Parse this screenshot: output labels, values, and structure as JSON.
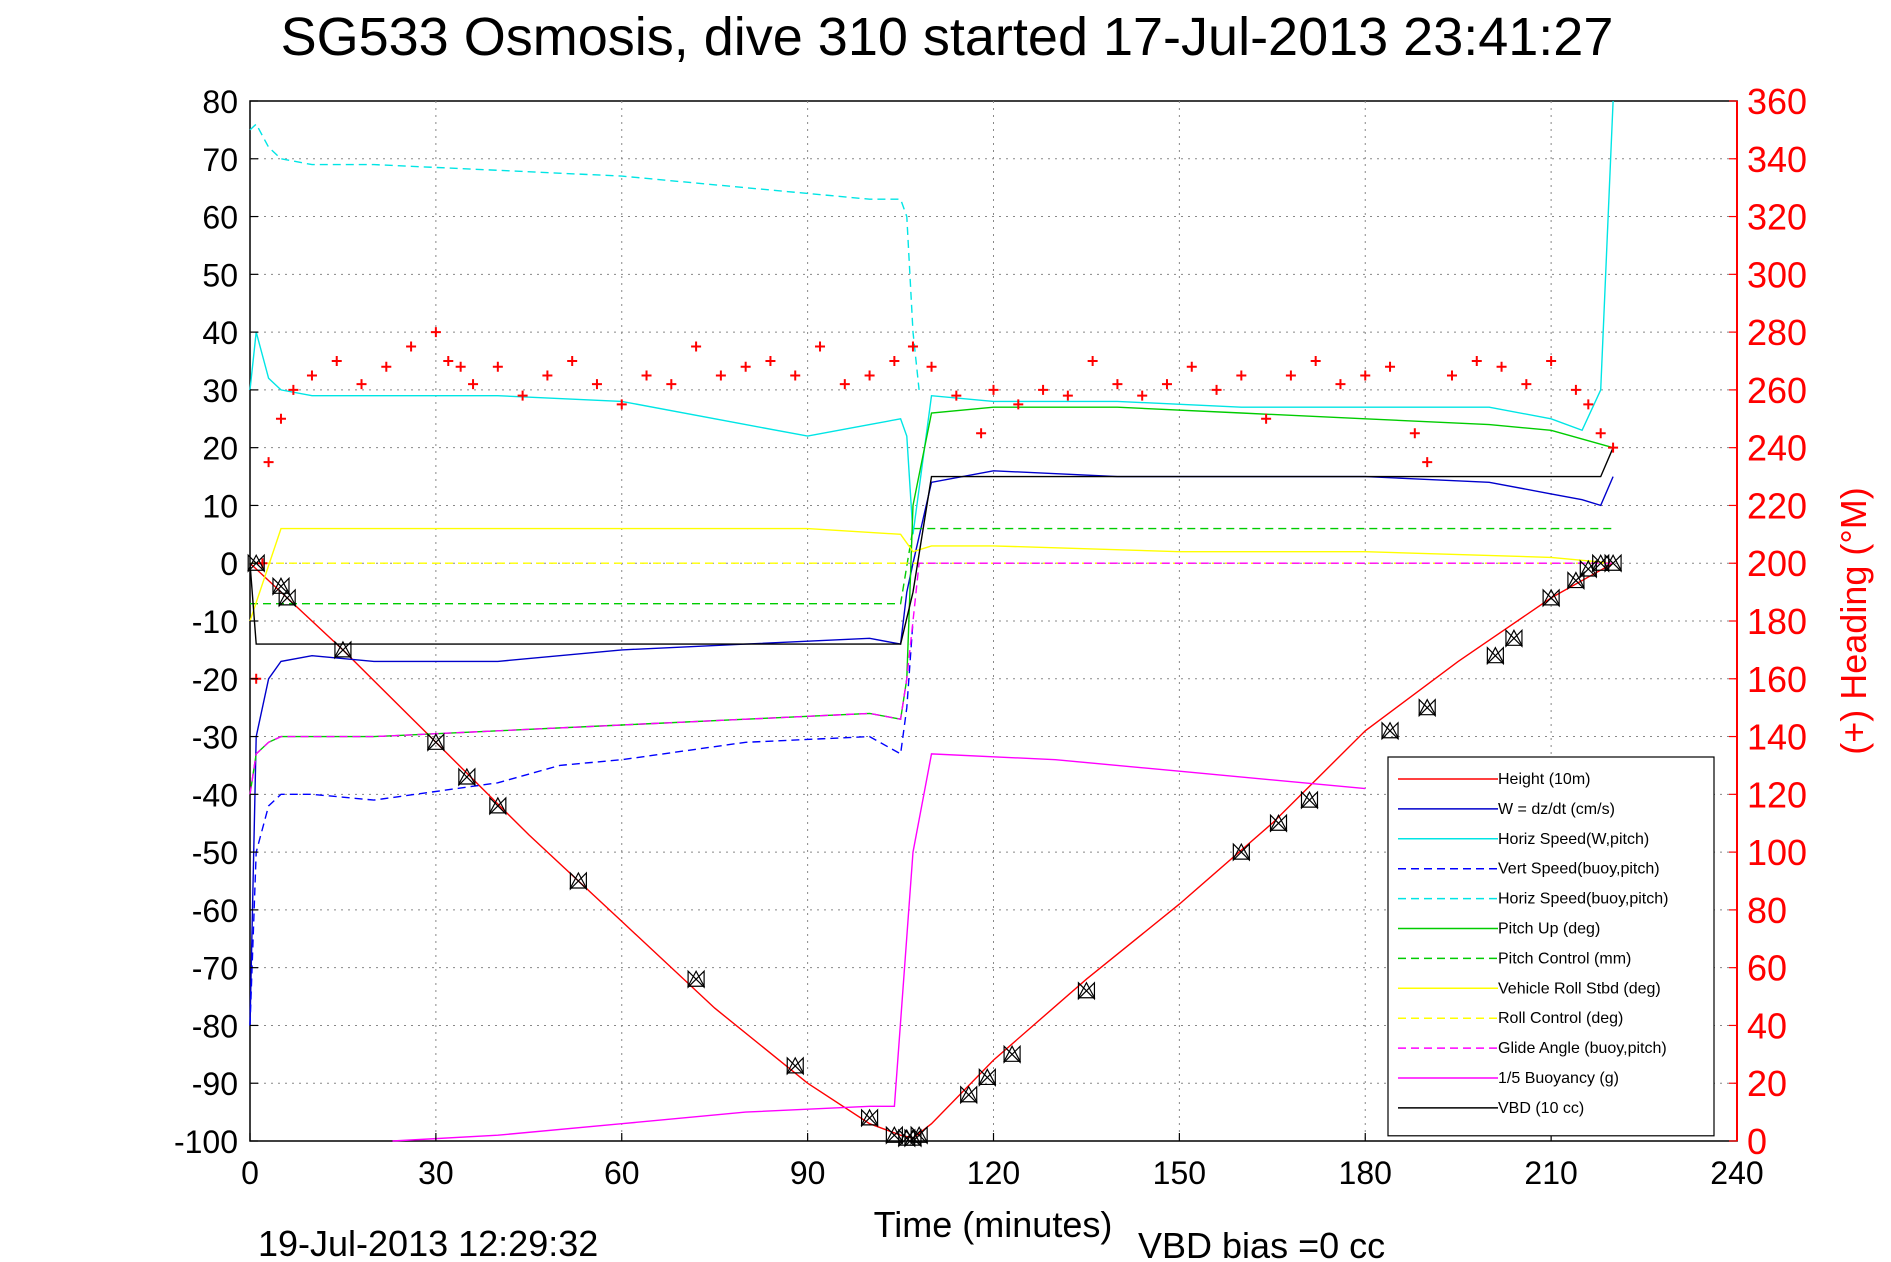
{
  "chart_data": {
    "type": "line",
    "title": "SG533 Osmosis, dive 310 started 17-Jul-2013 23:41:27",
    "xlabel": "Time (minutes)",
    "ylabel_right": "(+) Heading (°M)",
    "footer_left": "19-Jul-2013 12:29:32",
    "footer_right": "VBD bias =0 cc",
    "xlim": [
      0,
      240
    ],
    "ylim": [
      -100,
      80
    ],
    "ylim_right": [
      0,
      360
    ],
    "x_ticks": [
      "0",
      "30",
      "60",
      "90",
      "120",
      "150",
      "180",
      "210",
      "240"
    ],
    "y_ticks": [
      "80",
      "70",
      "60",
      "50",
      "40",
      "30",
      "20",
      "10",
      "0",
      "-10",
      "-20",
      "-30",
      "-40",
      "-50",
      "-60",
      "-70",
      "-80",
      "-90",
      "-100"
    ],
    "y_ticks_right": [
      "360",
      "340",
      "320",
      "300",
      "280",
      "260",
      "240",
      "220",
      "200",
      "180",
      "160",
      "140",
      "120",
      "100",
      "80",
      "60",
      "40",
      "20",
      "0"
    ],
    "grid": true,
    "legend_position": "bottom-right",
    "colors": {
      "red": "#ff0000",
      "blue": "#0000cc",
      "cyan": "#00e5e5",
      "green": "#00cc00",
      "yellow": "#ffff00",
      "magenta": "#ff00ff",
      "black": "#000000"
    },
    "series": [
      {
        "name": "Height (10m)",
        "color": "#ff0000",
        "dash": "solid",
        "x": [
          0,
          15,
          30,
          45,
          60,
          75,
          90,
          100,
          105,
          107,
          110,
          120,
          135,
          150,
          165,
          180,
          195,
          210,
          220
        ],
        "y": [
          0,
          -15,
          -31,
          -47,
          -62,
          -77,
          -90,
          -97,
          -99,
          -99.5,
          -97,
          -86,
          -72,
          -59,
          -45,
          -29,
          -17,
          -6,
          0
        ]
      },
      {
        "name": "W = dz/dt (cm/s)",
        "color": "#0000cc",
        "dash": "solid",
        "x": [
          0,
          1,
          3,
          5,
          10,
          20,
          40,
          60,
          80,
          100,
          105,
          106,
          107,
          110,
          120,
          140,
          160,
          180,
          200,
          210,
          215,
          218,
          220
        ],
        "y": [
          -80,
          -30,
          -20,
          -17,
          -16,
          -17,
          -17,
          -15,
          -14,
          -13,
          -14,
          -5,
          0,
          14,
          16,
          15,
          15,
          15,
          14,
          12,
          11,
          10,
          15
        ]
      },
      {
        "name": "Horiz Speed(W,pitch)",
        "color": "#00e5e5",
        "dash": "solid",
        "x": [
          0,
          1,
          3,
          5,
          10,
          20,
          40,
          60,
          80,
          90,
          100,
          105,
          106,
          107,
          110,
          120,
          140,
          160,
          180,
          200,
          210,
          215,
          218,
          220
        ],
        "y": [
          30,
          40,
          32,
          30,
          29,
          29,
          29,
          28,
          24,
          22,
          24,
          25,
          22,
          5,
          29,
          28,
          28,
          27,
          27,
          27,
          25,
          23,
          30,
          80
        ]
      },
      {
        "name": "Vert Speed(buoy,pitch)",
        "color": "#0000ff",
        "dash": "dashed",
        "x": [
          0,
          1,
          3,
          5,
          10,
          20,
          40,
          50,
          60,
          80,
          100,
          105,
          106,
          107
        ],
        "y": [
          -80,
          -50,
          -42,
          -40,
          -40,
          -41,
          -38,
          -35,
          -34,
          -31,
          -30,
          -33,
          -25,
          -10
        ]
      },
      {
        "name": "Horiz Speed(buoy,pitch)",
        "color": "#00e5e5",
        "dash": "dashed",
        "x": [
          0,
          1,
          3,
          5,
          10,
          20,
          40,
          60,
          80,
          100,
          105,
          106,
          107,
          108
        ],
        "y": [
          75,
          76,
          72,
          70,
          69,
          69,
          68,
          67,
          65,
          63,
          63,
          60,
          40,
          30
        ]
      },
      {
        "name": "Pitch Up (deg)",
        "color": "#00cc00",
        "dash": "solid",
        "x": [
          0,
          1,
          3,
          5,
          10,
          20,
          40,
          60,
          80,
          100,
          105,
          106,
          107,
          110,
          120,
          140,
          160,
          180,
          200,
          210,
          220
        ],
        "y": [
          -40,
          -33,
          -31,
          -30,
          -30,
          -30,
          -29,
          -28,
          -27,
          -26,
          -27,
          -20,
          10,
          26,
          27,
          27,
          26,
          25,
          24,
          23,
          20
        ]
      },
      {
        "name": "Pitch Control (mm)",
        "color": "#00cc00",
        "dash": "dashed",
        "x": [
          0,
          5,
          30,
          60,
          90,
          105,
          107,
          110,
          120,
          150,
          180,
          210,
          220
        ],
        "y": [
          -7,
          -7,
          -7,
          -7,
          -7,
          -7,
          6,
          6,
          6,
          6,
          6,
          6,
          6
        ]
      },
      {
        "name": "Vehicle Roll Stbd (deg)",
        "color": "#ffff00",
        "dash": "solid",
        "x": [
          0,
          5,
          10,
          30,
          60,
          90,
          105,
          107,
          110,
          120,
          150,
          180,
          210,
          220
        ],
        "y": [
          -10,
          6,
          6,
          6,
          6,
          6,
          5,
          2,
          3,
          3,
          2,
          2,
          1,
          0
        ]
      },
      {
        "name": "Roll Control (deg)",
        "color": "#ffff00",
        "dash": "dashed",
        "x": [
          0,
          5,
          30,
          60,
          90,
          105,
          107,
          110,
          150,
          180,
          210,
          220
        ],
        "y": [
          0,
          0,
          0,
          0,
          0,
          0,
          0,
          0,
          0,
          0,
          0,
          0
        ]
      },
      {
        "name": "Glide Angle (buoy,pitch)",
        "color": "#ff00ff",
        "dash": "dashed",
        "x": [
          0,
          1,
          3,
          5,
          10,
          20,
          40,
          60,
          80,
          100,
          105,
          106,
          107,
          108,
          150,
          220
        ],
        "y": [
          -40,
          -33,
          -31,
          -30,
          -30,
          -30,
          -29,
          -28,
          -27,
          -26,
          -27,
          -20,
          -10,
          0,
          0,
          0
        ]
      },
      {
        "name": "1/5 Buoyancy (g)",
        "color": "#ff00ff",
        "dash": "solid",
        "x": [
          23,
          40,
          60,
          80,
          100,
          104,
          107,
          110,
          130,
          150,
          180
        ],
        "y": [
          -100,
          -99,
          -97,
          -95,
          -94,
          -94,
          -50,
          -33,
          -34,
          -36,
          -39
        ]
      },
      {
        "name": "VBD (10 cc)",
        "color": "#000000",
        "dash": "solid",
        "x": [
          0,
          1,
          2,
          10,
          30,
          60,
          90,
          105,
          107,
          110,
          120,
          150,
          180,
          210,
          218,
          220
        ],
        "y": [
          0,
          -14,
          -14,
          -14,
          -14,
          -14,
          -14,
          -14,
          -5,
          15,
          15,
          15,
          15,
          15,
          15,
          20
        ]
      },
      {
        "name": "(+) Heading",
        "color": "#ff0000",
        "dash": "markers",
        "axis": "right",
        "x": [
          1,
          2,
          3,
          5,
          7,
          10,
          14,
          18,
          22,
          26,
          30,
          32,
          34,
          36,
          40,
          44,
          48,
          52,
          56,
          60,
          64,
          68,
          72,
          76,
          80,
          84,
          88,
          92,
          96,
          100,
          104,
          107,
          110,
          114,
          118,
          120,
          124,
          128,
          132,
          136,
          140,
          144,
          148,
          152,
          156,
          160,
          164,
          168,
          172,
          176,
          180,
          184,
          188,
          190,
          194,
          198,
          202,
          206,
          210,
          214,
          216,
          218,
          220
        ],
        "y": [
          160,
          200,
          235,
          250,
          260,
          265,
          270,
          262,
          268,
          275,
          280,
          270,
          268,
          262,
          268,
          258,
          265,
          270,
          262,
          255,
          265,
          262,
          275,
          265,
          268,
          270,
          265,
          275,
          262,
          265,
          270,
          275,
          268,
          258,
          245,
          260,
          255,
          260,
          258,
          270,
          262,
          258,
          262,
          268,
          260,
          265,
          250,
          265,
          270,
          262,
          265,
          268,
          245,
          235,
          265,
          270,
          268,
          262,
          270,
          260,
          255,
          245,
          240
        ]
      }
    ],
    "depth_markers": {
      "x": [
        1,
        5,
        6,
        15,
        30,
        35,
        40,
        53,
        72,
        88,
        100,
        104,
        106,
        107,
        108,
        116,
        119,
        123,
        135,
        160,
        166,
        171,
        184,
        190,
        201,
        204,
        210,
        214,
        216,
        218,
        220
      ],
      "y": [
        0,
        -4,
        -6,
        -15,
        -31,
        -37,
        -42,
        -55,
        -72,
        -87,
        -96,
        -99,
        -99.5,
        -99.5,
        -99,
        -92,
        -89,
        -85,
        -74,
        -50,
        -45,
        -41,
        -29,
        -25,
        -16,
        -13,
        -6,
        -3,
        -1,
        0,
        0
      ]
    }
  }
}
